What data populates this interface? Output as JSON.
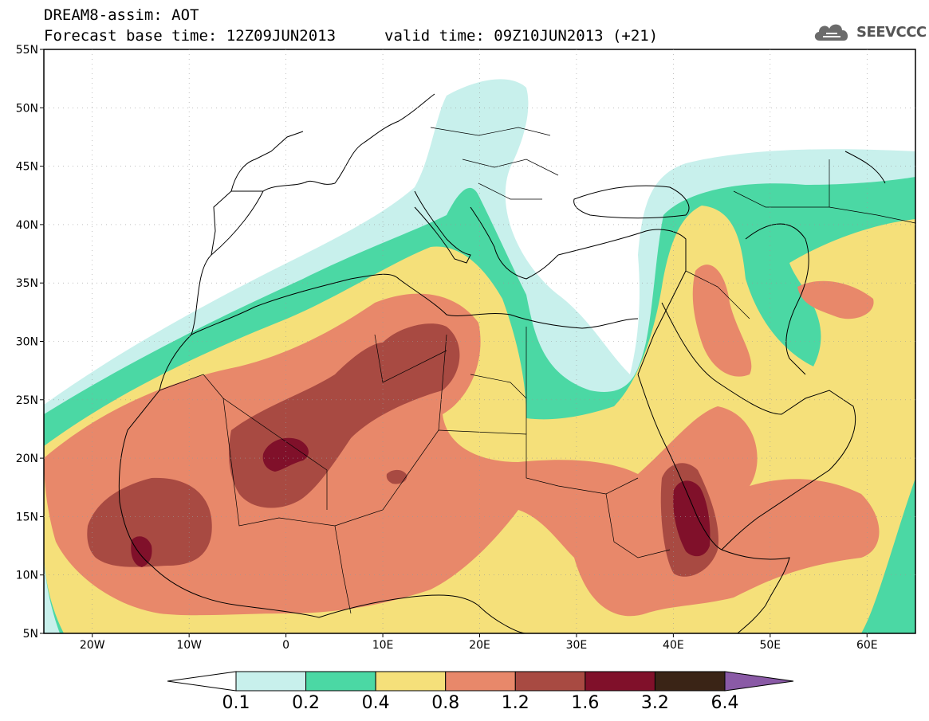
{
  "header": {
    "title": "DREAM8-assim: AOT",
    "base_time": "Forecast base time: 12Z09JUN2013",
    "valid_time": "valid time: 09Z10JUN2013 (+21)",
    "logo_text": "SEEVCCC",
    "logo_icon": "cloud-icon"
  },
  "map": {
    "lon_range": [
      -25,
      65
    ],
    "lat_range": [
      5,
      55
    ],
    "lat_labels": [
      "55N",
      "50N",
      "45N",
      "40N",
      "35N",
      "30N",
      "25N",
      "20N",
      "15N",
      "10N",
      "5N"
    ],
    "lon_labels": [
      "20W",
      "10W",
      "0",
      "10E",
      "20E",
      "30E",
      "40E",
      "50E",
      "60E"
    ],
    "land_color": "#ffffff",
    "border_color": "#000000"
  },
  "colorbar": {
    "labels": [
      "0.1",
      "0.2",
      "0.4",
      "0.8",
      "1.2",
      "1.6",
      "3.2",
      "6.4"
    ],
    "colors": [
      "#ffffff",
      "#c8f0ec",
      "#4bd8a4",
      "#f5e07a",
      "#e8886a",
      "#a84a42",
      "#80102a",
      "#3a2416",
      "#8a5aa6"
    ]
  }
}
